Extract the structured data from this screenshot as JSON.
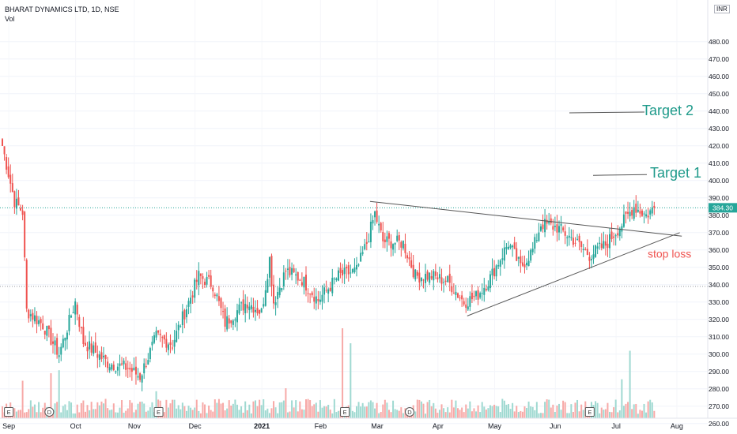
{
  "header": {
    "title": "BHARAT DYNAMICS LTD, 1D, NSE",
    "volume_label": "Vol",
    "currency": "INR"
  },
  "colors": {
    "up": "#26a69a",
    "down": "#ef5350",
    "up_volume": "#9fd9d1",
    "down_volume": "#f7a9a7",
    "target_text": "#1e9a8a",
    "stoploss_text": "#ef5350",
    "trendline": "#555555",
    "price_badge": "#26a69a"
  },
  "chart_data": {
    "type": "candlestick",
    "y_axis_ticks": [
      260,
      270,
      280,
      290,
      300,
      310,
      320,
      330,
      340,
      350,
      360,
      370,
      380,
      390,
      400,
      410,
      420,
      430,
      440,
      450,
      460,
      470,
      480
    ],
    "ylim": [
      256,
      492
    ],
    "x_axis_labels": [
      "Sep",
      "Oct",
      "Nov",
      "Dec",
      "2021",
      "Feb",
      "Mar",
      "Apr",
      "May",
      "Jun",
      "Jul",
      "Aug"
    ],
    "last_price": "384.30",
    "reference_price": 339,
    "event_markers": [
      "E",
      "D",
      "E",
      "E",
      "D",
      "E"
    ],
    "annotations": [
      {
        "text": "Target 2",
        "price": 439
      },
      {
        "text": "Target 1",
        "price": 403
      },
      {
        "text": "stop loss",
        "price": 362
      }
    ],
    "trendlines": [
      {
        "name": "upper",
        "from": {
          "bar": 182,
          "price": 388
        },
        "to": {
          "bar": 336,
          "price": 368
        }
      },
      {
        "name": "lower",
        "from": {
          "bar": 230,
          "price": 322
        },
        "to": {
          "bar": 335,
          "price": 370
        }
      }
    ],
    "pivots": [
      [
        0,
        420
      ],
      [
        6,
        388
      ],
      [
        10,
        382
      ],
      [
        12,
        325
      ],
      [
        20,
        317
      ],
      [
        28,
        300
      ],
      [
        36,
        330
      ],
      [
        40,
        307
      ],
      [
        52,
        295
      ],
      [
        62,
        292
      ],
      [
        68,
        287
      ],
      [
        76,
        310
      ],
      [
        84,
        306
      ],
      [
        92,
        330
      ],
      [
        97,
        345
      ],
      [
        104,
        340
      ],
      [
        110,
        318
      ],
      [
        116,
        325
      ],
      [
        121,
        330
      ],
      [
        128,
        324
      ],
      [
        132,
        355
      ],
      [
        134,
        330
      ],
      [
        140,
        348
      ],
      [
        148,
        343
      ],
      [
        156,
        331
      ],
      [
        166,
        345
      ],
      [
        175,
        348
      ],
      [
        180,
        364
      ],
      [
        184,
        381
      ],
      [
        188,
        365
      ],
      [
        198,
        364
      ],
      [
        204,
        345
      ],
      [
        212,
        345
      ],
      [
        220,
        342
      ],
      [
        228,
        330
      ],
      [
        234,
        333
      ],
      [
        240,
        342
      ],
      [
        250,
        364
      ],
      [
        256,
        350
      ],
      [
        262,
        360
      ],
      [
        266,
        375
      ],
      [
        274,
        373
      ],
      [
        282,
        366
      ],
      [
        290,
        357
      ],
      [
        298,
        363
      ],
      [
        306,
        375
      ],
      [
        312,
        385
      ],
      [
        318,
        380
      ],
      [
        322,
        384.3
      ]
    ],
    "volume_spikes": [
      [
        24,
        30
      ],
      [
        28,
        32
      ],
      [
        10,
        25
      ],
      [
        168,
        60
      ],
      [
        172,
        50
      ],
      [
        310,
        45
      ],
      [
        306,
        26
      ],
      [
        140,
        20
      ],
      [
        76,
        18
      ]
    ]
  }
}
